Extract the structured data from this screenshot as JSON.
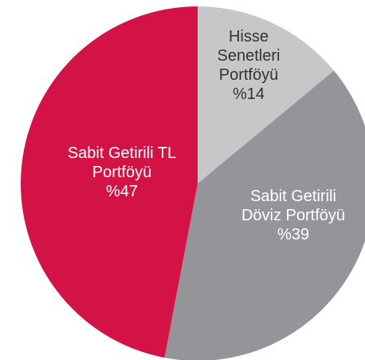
{
  "chart_data": {
    "type": "pie",
    "categories": [
      "Hisse Senetleri Portföyü",
      "Sabit Getirili Döviz Portföyü",
      "Sabit Getirili TL Portföyü"
    ],
    "values": [
      14,
      39,
      47
    ],
    "value_labels": [
      "%14",
      "%39",
      "%47"
    ],
    "colors": [
      "#c6c7c9",
      "#939598",
      "#d31245"
    ]
  }
}
